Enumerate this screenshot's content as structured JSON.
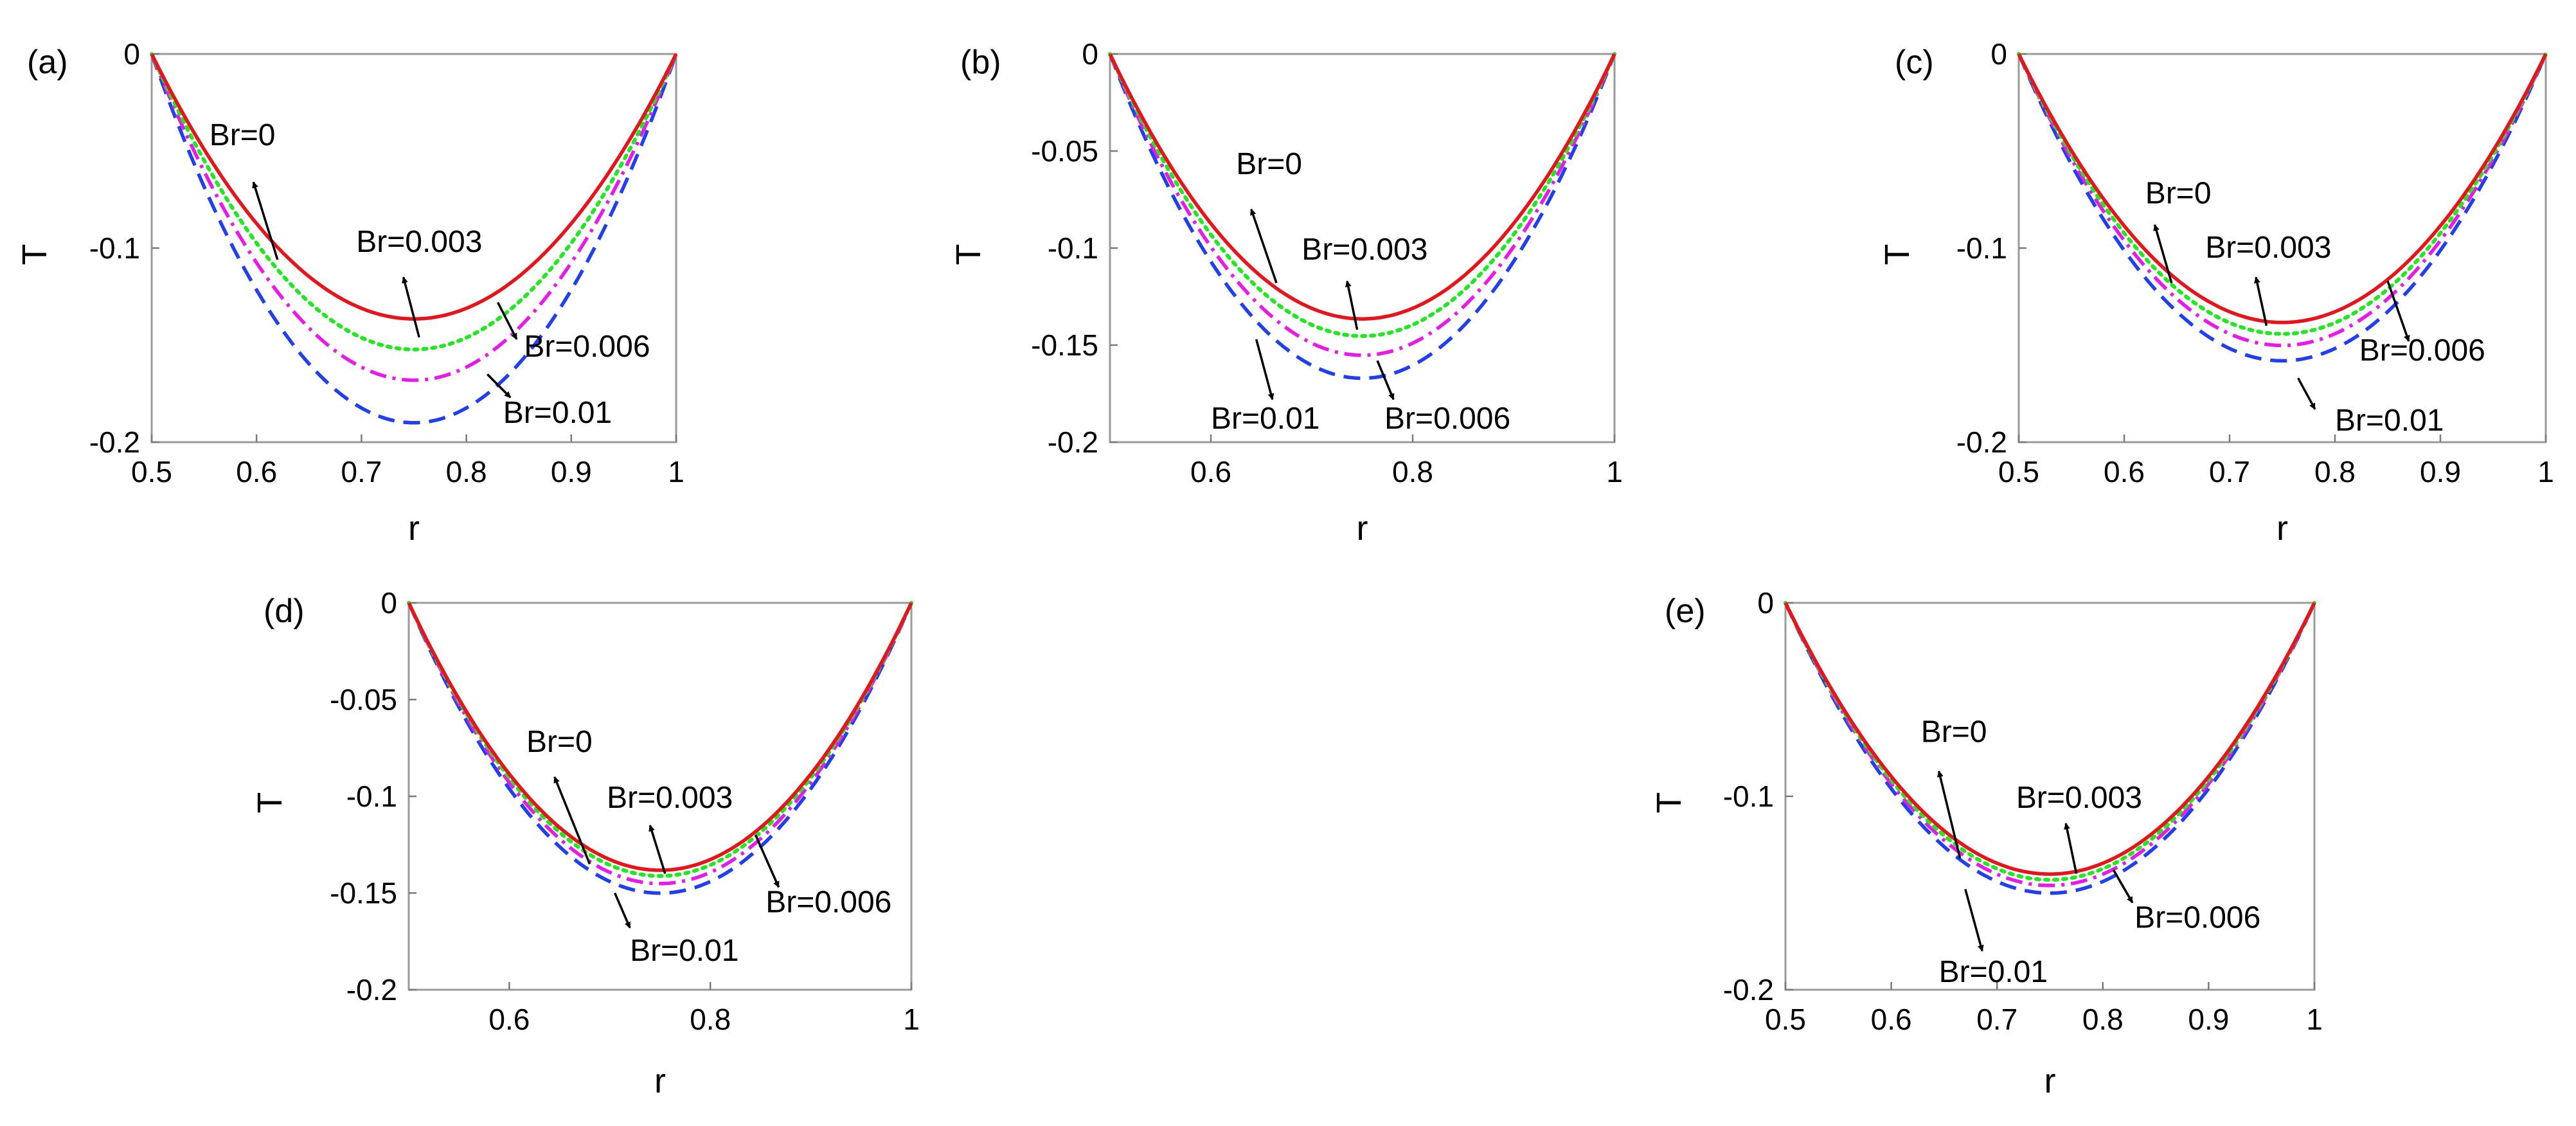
{
  "figure": {
    "line_colors": {
      "Br=0": "#e8141b",
      "Br=0.003": "#1ee81e",
      "Br=0.006": "#ea19ea",
      "Br=0.01": "#1f3ff0"
    }
  },
  "chart_data": [
    {
      "id": "a",
      "panel_label": "(a)",
      "type": "line",
      "xlabel": "r",
      "ylabel": "T",
      "xlim": [
        0.5,
        1
      ],
      "ylim": [
        -0.2,
        0
      ],
      "xticks": [
        0.5,
        0.6,
        0.7,
        0.8,
        0.9,
        1
      ],
      "xtick_labels": [
        "0.5",
        "0.6",
        "0.7",
        "0.8",
        "0.9",
        "1"
      ],
      "yticks": [
        0,
        -0.1,
        -0.2
      ],
      "ytick_labels": [
        "0",
        "-0.1",
        "-0.2"
      ],
      "series": [
        {
          "name": "Br=0",
          "style": "solid",
          "color": "#e8141b",
          "min": -0.136,
          "r_min": 0.735,
          "skew": 0.0
        },
        {
          "name": "Br=0.003",
          "style": "dotted",
          "color": "#1ee81e",
          "min": -0.152,
          "r_min": 0.74,
          "skew": 0.0
        },
        {
          "name": "Br=0.006",
          "style": "dashdot",
          "color": "#ea19ea",
          "min": -0.168,
          "r_min": 0.745,
          "skew": 0.0
        },
        {
          "name": "Br=0.01",
          "style": "dashed",
          "color": "#1f3ff0",
          "min": -0.19,
          "r_min": 0.75,
          "skew": 0.0
        }
      ],
      "annotations": [
        {
          "text": "Br=0",
          "text_x": 0.555,
          "text_y": -0.047,
          "arrow_from": [
            0.62,
            -0.106
          ],
          "arrow_to": [
            0.597,
            -0.066
          ]
        },
        {
          "text": "Br=0.003",
          "text_x": 0.695,
          "text_y": -0.102,
          "arrow_from": [
            0.755,
            -0.146
          ],
          "arrow_to": [
            0.74,
            -0.115
          ]
        },
        {
          "text": "Br=0.006",
          "text_x": 0.855,
          "text_y": -0.156,
          "arrow_from": [
            0.83,
            -0.128
          ],
          "arrow_to": [
            0.848,
            -0.147
          ]
        },
        {
          "text": "Br=0.01",
          "text_x": 0.835,
          "text_y": -0.19,
          "arrow_from": [
            0.82,
            -0.165
          ],
          "arrow_to": [
            0.842,
            -0.177
          ]
        }
      ]
    },
    {
      "id": "b",
      "panel_label": "(b)",
      "type": "line",
      "xlabel": "r",
      "ylabel": "T",
      "xlim": [
        0.5,
        1
      ],
      "ylim": [
        -0.2,
        0
      ],
      "xticks": [
        0.6,
        0.8,
        1
      ],
      "xtick_labels": [
        "0.6",
        "0.8",
        "1"
      ],
      "yticks": [
        0,
        -0.05,
        -0.1,
        -0.15,
        -0.2
      ],
      "ytick_labels": [
        "0",
        "-0.05",
        "-0.1",
        "-0.15",
        "-0.2"
      ],
      "series": [
        {
          "name": "Br=0",
          "style": "solid",
          "color": "#e8141b",
          "min": -0.136,
          "r_min": 0.735,
          "skew": 0.0
        },
        {
          "name": "Br=0.003",
          "style": "dotted",
          "color": "#1ee81e",
          "min": -0.145,
          "r_min": 0.738,
          "skew": 0.0
        },
        {
          "name": "Br=0.006",
          "style": "dashdot",
          "color": "#ea19ea",
          "min": -0.155,
          "r_min": 0.741,
          "skew": 0.0
        },
        {
          "name": "Br=0.01",
          "style": "dashed",
          "color": "#1f3ff0",
          "min": -0.167,
          "r_min": 0.745,
          "skew": 0.0
        }
      ],
      "annotations": [
        {
          "text": "Br=0",
          "text_x": 0.625,
          "text_y": -0.062,
          "arrow_from": [
            0.665,
            -0.118
          ],
          "arrow_to": [
            0.64,
            -0.08
          ]
        },
        {
          "text": "Br=0.003",
          "text_x": 0.69,
          "text_y": -0.106,
          "arrow_from": [
            0.745,
            -0.142
          ],
          "arrow_to": [
            0.735,
            -0.117
          ]
        },
        {
          "text": "Br=0.01",
          "text_x": 0.6,
          "text_y": -0.193,
          "arrow_from": [
            0.645,
            -0.147
          ],
          "arrow_to": [
            0.661,
            -0.178
          ]
        },
        {
          "text": "Br=0.006",
          "text_x": 0.772,
          "text_y": -0.193,
          "arrow_from": [
            0.765,
            -0.158
          ],
          "arrow_to": [
            0.781,
            -0.178
          ]
        }
      ]
    },
    {
      "id": "c",
      "panel_label": "(c)",
      "type": "line",
      "xlabel": "r",
      "ylabel": "T",
      "xlim": [
        0.5,
        1
      ],
      "ylim": [
        -0.2,
        0
      ],
      "xticks": [
        0.5,
        0.6,
        0.7,
        0.8,
        0.9,
        1
      ],
      "xtick_labels": [
        "0.5",
        "0.6",
        "0.7",
        "0.8",
        "0.9",
        "1"
      ],
      "yticks": [
        0,
        -0.1,
        -0.2
      ],
      "ytick_labels": [
        "0",
        "-0.1",
        "-0.2"
      ],
      "series": [
        {
          "name": "Br=0",
          "style": "solid",
          "color": "#e8141b",
          "min": -0.138,
          "r_min": 0.738,
          "skew": 0.0
        },
        {
          "name": "Br=0.003",
          "style": "dotted",
          "color": "#1ee81e",
          "min": -0.144,
          "r_min": 0.74,
          "skew": 0.0
        },
        {
          "name": "Br=0.006",
          "style": "dashdot",
          "color": "#ea19ea",
          "min": -0.15,
          "r_min": 0.742,
          "skew": 0.0
        },
        {
          "name": "Br=0.01",
          "style": "dashed",
          "color": "#1f3ff0",
          "min": -0.158,
          "r_min": 0.745,
          "skew": 0.0
        }
      ],
      "annotations": [
        {
          "text": "Br=0",
          "text_x": 0.62,
          "text_y": -0.077,
          "arrow_from": [
            0.645,
            -0.118
          ],
          "arrow_to": [
            0.629,
            -0.088
          ]
        },
        {
          "text": "Br=0.003",
          "text_x": 0.677,
          "text_y": -0.105,
          "arrow_from": [
            0.735,
            -0.14
          ],
          "arrow_to": [
            0.725,
            -0.115
          ]
        },
        {
          "text": "Br=0.006",
          "text_x": 0.823,
          "text_y": -0.158,
          "arrow_from": [
            0.85,
            -0.117
          ],
          "arrow_to": [
            0.87,
            -0.148
          ]
        },
        {
          "text": "Br=0.01",
          "text_x": 0.8,
          "text_y": -0.194,
          "arrow_from": [
            0.765,
            -0.167
          ],
          "arrow_to": [
            0.781,
            -0.183
          ]
        }
      ]
    },
    {
      "id": "d",
      "panel_label": "(d)",
      "type": "line",
      "xlabel": "r",
      "ylabel": "T",
      "xlim": [
        0.5,
        1
      ],
      "ylim": [
        -0.2,
        0
      ],
      "xticks": [
        0.6,
        0.8,
        1
      ],
      "xtick_labels": [
        "0.6",
        "0.8",
        "1"
      ],
      "yticks": [
        0,
        -0.05,
        -0.1,
        -0.15,
        -0.2
      ],
      "ytick_labels": [
        "0",
        "-0.05",
        "-0.1",
        "-0.15",
        "-0.2"
      ],
      "series": [
        {
          "name": "Br=0",
          "style": "solid",
          "color": "#e8141b",
          "min": -0.138,
          "r_min": 0.74,
          "skew": 0.0
        },
        {
          "name": "Br=0.003",
          "style": "dotted",
          "color": "#1ee81e",
          "min": -0.141,
          "r_min": 0.741,
          "skew": 0.0
        },
        {
          "name": "Br=0.006",
          "style": "dashdot",
          "color": "#ea19ea",
          "min": -0.145,
          "r_min": 0.743,
          "skew": 0.0
        },
        {
          "name": "Br=0.01",
          "style": "dashed",
          "color": "#1f3ff0",
          "min": -0.15,
          "r_min": 0.745,
          "skew": 0.0
        }
      ],
      "annotations": [
        {
          "text": "Br=0",
          "text_x": 0.617,
          "text_y": -0.077,
          "arrow_from": [
            0.68,
            -0.135
          ],
          "arrow_to": [
            0.645,
            -0.09
          ]
        },
        {
          "text": "Br=0.003",
          "text_x": 0.697,
          "text_y": -0.106,
          "arrow_from": [
            0.755,
            -0.14
          ],
          "arrow_to": [
            0.74,
            -0.115
          ]
        },
        {
          "text": "Br=0.006",
          "text_x": 0.855,
          "text_y": -0.16,
          "arrow_from": [
            0.845,
            -0.12
          ],
          "arrow_to": [
            0.868,
            -0.147
          ]
        },
        {
          "text": "Br=0.01",
          "text_x": 0.72,
          "text_y": -0.185,
          "arrow_from": [
            0.705,
            -0.15
          ],
          "arrow_to": [
            0.72,
            -0.168
          ]
        }
      ]
    },
    {
      "id": "e",
      "panel_label": "(e)",
      "type": "line",
      "xlabel": "r",
      "ylabel": "T",
      "xlim": [
        0.5,
        1
      ],
      "ylim": [
        -0.2,
        0
      ],
      "xticks": [
        0.5,
        0.6,
        0.7,
        0.8,
        0.9,
        1
      ],
      "xtick_labels": [
        "0.5",
        "0.6",
        "0.7",
        "0.8",
        "0.9",
        "1"
      ],
      "yticks": [
        0,
        -0.1,
        -0.2
      ],
      "ytick_labels": [
        "0",
        "-0.1",
        "-0.2"
      ],
      "series": [
        {
          "name": "Br=0",
          "style": "solid",
          "color": "#e8141b",
          "min": -0.14,
          "r_min": 0.74,
          "skew": 0.0
        },
        {
          "name": "Br=0.003",
          "style": "dotted",
          "color": "#1ee81e",
          "min": -0.143,
          "r_min": 0.741,
          "skew": 0.0
        },
        {
          "name": "Br=0.006",
          "style": "dashdot",
          "color": "#ea19ea",
          "min": -0.146,
          "r_min": 0.743,
          "skew": 0.0
        },
        {
          "name": "Br=0.01",
          "style": "dashed",
          "color": "#1f3ff0",
          "min": -0.15,
          "r_min": 0.745,
          "skew": 0.0
        }
      ],
      "annotations": [
        {
          "text": "Br=0",
          "text_x": 0.628,
          "text_y": -0.072,
          "arrow_from": [
            0.665,
            -0.132
          ],
          "arrow_to": [
            0.645,
            -0.087
          ]
        },
        {
          "text": "Br=0.003",
          "text_x": 0.718,
          "text_y": -0.106,
          "arrow_from": [
            0.775,
            -0.14
          ],
          "arrow_to": [
            0.765,
            -0.114
          ]
        },
        {
          "text": "Br=0.01",
          "text_x": 0.645,
          "text_y": -0.196,
          "arrow_from": [
            0.67,
            -0.148
          ],
          "arrow_to": [
            0.686,
            -0.18
          ]
        },
        {
          "text": "Br=0.006",
          "text_x": 0.83,
          "text_y": -0.168,
          "arrow_from": [
            0.81,
            -0.138
          ],
          "arrow_to": [
            0.828,
            -0.155
          ]
        }
      ]
    }
  ]
}
